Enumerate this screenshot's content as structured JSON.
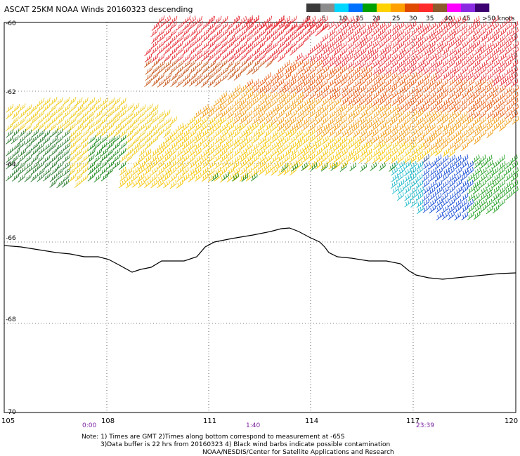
{
  "title": "ASCAT 25KM NOAA Winds 20160323 descending",
  "colorbar": {
    "labels": [
      "0",
      "5",
      "10",
      "15",
      "20",
      "25",
      "30",
      "35",
      "40",
      "45",
      ">50 knots"
    ],
    "colors": [
      "#3a3a3a",
      "#8c8c8c",
      "#00d7ff",
      "#0070ff",
      "#00a000",
      "#ffd200",
      "#ffa000",
      "#e04a00",
      "#ff2a2a",
      "#8c5a2d",
      "#ff00ff",
      "#8a2be2",
      "#3c0070"
    ]
  },
  "lat_labels": [
    "-60",
    "-62",
    "-64",
    "-66",
    "-68",
    "-70"
  ],
  "lon_labels": [
    "105",
    "108",
    "111",
    "114",
    "117",
    "120"
  ],
  "time_labels": [
    "0:00",
    "1:40",
    "23:39"
  ],
  "notes": {
    "line1": "Note: 1) Times are GMT 2)Times along bottom correspond to measurement at -65S",
    "line2": "3)Data buffer is 22 hrs from 20160323 4) Black wind barbs indicate possible contamination",
    "line3": "NOAA/NESDIS/Center for Satellite Applications and Research"
  }
}
